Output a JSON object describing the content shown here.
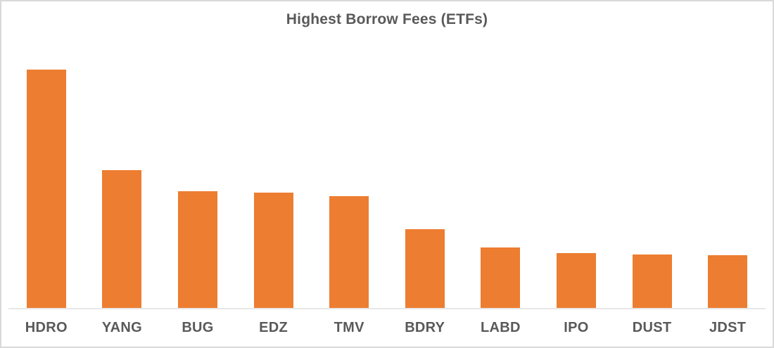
{
  "chart_data": {
    "type": "bar",
    "title": "Highest Borrow Fees (ETFs)",
    "categories": [
      "HDRO",
      "YANG",
      "BUG",
      "EDZ",
      "TMV",
      "BDRY",
      "LABD",
      "IPO",
      "DUST",
      "JDST"
    ],
    "values": [
      100,
      58,
      49,
      48.5,
      47,
      33,
      25.5,
      23,
      22.5,
      22
    ],
    "values_note": "relative bar heights, no y-axis scale shown; normalized to HDRO = 100",
    "xlabel": "",
    "ylabel": "",
    "ylim": [
      0,
      111
    ],
    "grid": false,
    "legend": false,
    "bar_color": "#ED7D31",
    "title_color": "#595959",
    "label_color": "#595959",
    "axis_line_color": "#E7E7E7",
    "border_color": "#D9D9D9"
  }
}
